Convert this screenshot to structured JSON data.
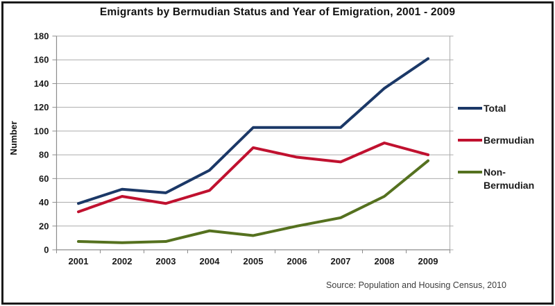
{
  "title": "Emigrants by Bermudian Status and Year of Emigration, 2001 - 2009",
  "source_note": "Source: Population and Housing Census, 2010",
  "colors": {
    "gridline": "#ABABAB",
    "axis": "#8C8C8C",
    "text": "#1A1A1A",
    "border": "#1A1A1A"
  },
  "chart_data": {
    "type": "line",
    "title": "Emigrants by Bermudian Status and Year of Emigration, 2001 - 2009",
    "xlabel": "",
    "ylabel": "Number",
    "x": [
      "2001",
      "2002",
      "2003",
      "2004",
      "2005",
      "2006",
      "2007",
      "2008",
      "2009"
    ],
    "series": [
      {
        "name": "Total",
        "color": "#1B3867",
        "values": [
          39,
          51,
          48,
          67,
          103,
          103,
          103,
          136,
          161
        ]
      },
      {
        "name": "Bermudian",
        "color": "#C0112F",
        "values": [
          32,
          45,
          39,
          50,
          86,
          78,
          74,
          90,
          80
        ]
      },
      {
        "name": "Non-Bermudian",
        "color": "#55711F",
        "values": [
          7,
          6,
          7,
          16,
          12,
          20,
          27,
          45,
          75
        ]
      }
    ],
    "ylim": [
      0,
      180
    ],
    "yticks": [
      0,
      20,
      40,
      60,
      80,
      100,
      120,
      140,
      160,
      180
    ],
    "grid": true,
    "legend_position": "right"
  }
}
